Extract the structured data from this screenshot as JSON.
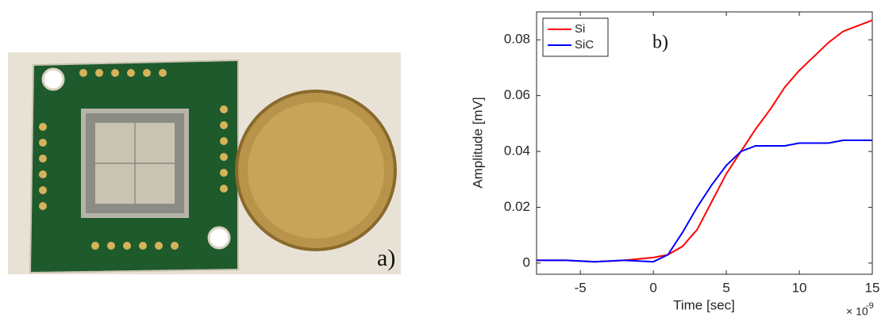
{
  "chart_data": {
    "type": "line",
    "photo_label": "a)",
    "annotation": "b)",
    "x_label": "Time [sec]",
    "y_label": "Amplitude [mV]",
    "x_multiplier": "× 10",
    "x_multiplier_exp": "-9",
    "x": [
      -8,
      -6,
      -4,
      -2,
      0,
      1,
      2,
      3,
      4,
      5,
      6,
      7,
      8,
      9,
      10,
      11,
      12,
      13,
      14,
      15
    ],
    "series": [
      {
        "name": "Si",
        "color": "#ff0000",
        "values": [
          0.001,
          0.001,
          0.0005,
          0.001,
          0.002,
          0.003,
          0.006,
          0.012,
          0.022,
          0.032,
          0.04,
          0.048,
          0.055,
          0.063,
          0.069,
          0.074,
          0.079,
          0.083,
          0.085,
          0.087
        ]
      },
      {
        "name": "SiC",
        "color": "#0000ff",
        "values": [
          0.001,
          0.001,
          0.0005,
          0.001,
          0.0005,
          0.003,
          0.011,
          0.02,
          0.028,
          0.035,
          0.04,
          0.042,
          0.042,
          0.042,
          0.043,
          0.043,
          0.043,
          0.044,
          0.044,
          0.044
        ]
      }
    ],
    "xlim": [
      -8,
      15
    ],
    "ylim": [
      -0.004,
      0.09
    ],
    "xticks": [
      -5,
      0,
      5,
      10,
      15
    ],
    "yticks": [
      0,
      0.02,
      0.04,
      0.06,
      0.08
    ],
    "legend": "top-left"
  }
}
